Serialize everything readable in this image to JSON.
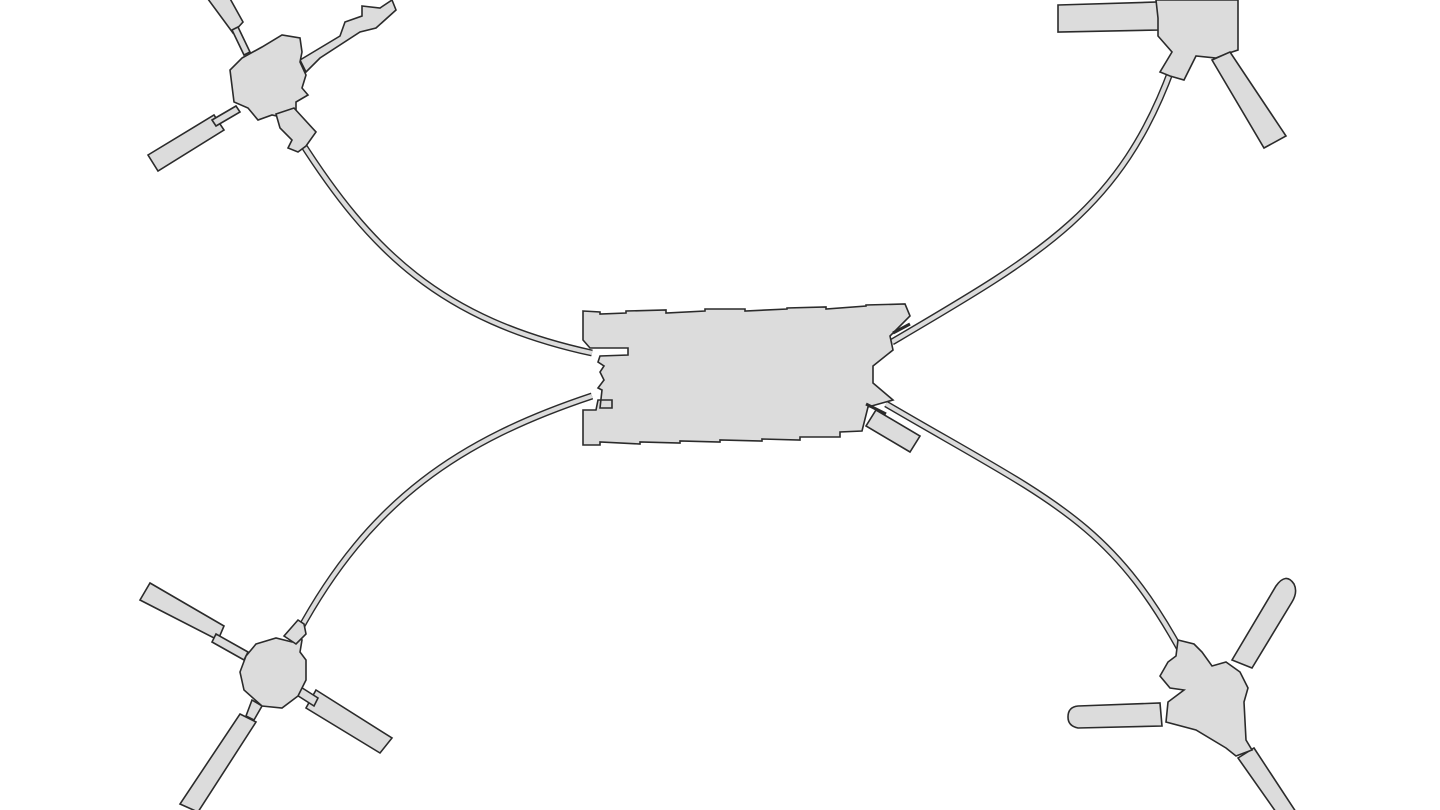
{
  "map": {
    "type": "airport-terminal-floorplan",
    "colors": {
      "building_fill": "#dcdcdc",
      "outline": "#2b2b2b",
      "background": "#ffffff"
    },
    "elements": [
      "main-terminal",
      "satellite-northwest",
      "satellite-northeast",
      "satellite-southwest",
      "satellite-southeast",
      "walkway-northwest",
      "walkway-northeast",
      "walkway-southwest",
      "walkway-southeast"
    ]
  }
}
